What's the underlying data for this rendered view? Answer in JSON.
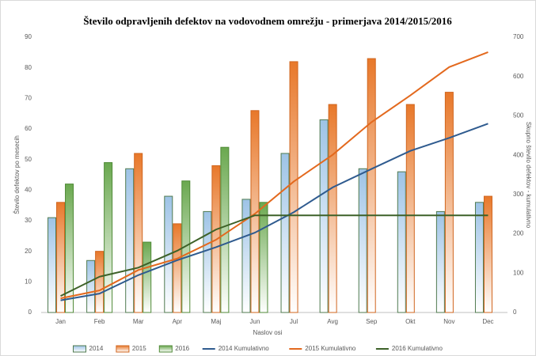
{
  "chart_data": {
    "type": "bar",
    "title": "Število odpravljenih defektov na vodovodnem omrežju - primerjava 2014/2015/2016",
    "x_label": "Naslov osi",
    "y_label": "Število defektov po mesecih",
    "y2_label": "Skupno število defektov - kumulativno",
    "categories": [
      "Jan",
      "Feb",
      "Mar",
      "Apr",
      "Maj",
      "Jun",
      "Jul",
      "Avg",
      "Sep",
      "Okt",
      "Nov",
      "Dec"
    ],
    "ylim": [
      0,
      90
    ],
    "yticks": [
      0,
      10,
      20,
      30,
      40,
      50,
      60,
      70,
      80,
      90
    ],
    "y2lim": [
      0,
      700
    ],
    "y2ticks": [
      0,
      100,
      200,
      300,
      400,
      500,
      600,
      700
    ],
    "grid": false,
    "legend": "bottom",
    "series": [
      {
        "name": "2014",
        "type": "bar",
        "color": "#9dc3e6",
        "edgecolor": "#4f7a4f",
        "values": [
          31,
          17,
          47,
          38,
          33,
          37,
          52,
          63,
          47,
          46,
          33,
          36
        ]
      },
      {
        "name": "2015",
        "type": "bar",
        "color": "#e8782a",
        "edgecolor": "#d0651e",
        "values": [
          36,
          20,
          52,
          29,
          48,
          66,
          82,
          68,
          83,
          68,
          72,
          38
        ]
      },
      {
        "name": "2016",
        "type": "bar",
        "color": "#6aa84f",
        "edgecolor": "#4f8a37",
        "values": [
          42,
          49,
          23,
          43,
          54,
          36,
          null,
          null,
          null,
          null,
          null,
          null
        ]
      },
      {
        "name": "2014 Kumulativno",
        "type": "line",
        "axis": "y2",
        "color": "#2f5b8f",
        "values": [
          31,
          48,
          95,
          133,
          166,
          203,
          255,
          318,
          365,
          411,
          444,
          480
        ]
      },
      {
        "name": "2015 Kumulativno",
        "type": "line",
        "axis": "y2",
        "color": "#e3691e",
        "values": [
          36,
          56,
          108,
          137,
          185,
          251,
          333,
          401,
          484,
          552,
          624,
          662
        ]
      },
      {
        "name": "2016 Kumulativno",
        "type": "line",
        "axis": "y2",
        "color": "#3d6128",
        "values": [
          42,
          91,
          114,
          157,
          211,
          247,
          247,
          247,
          247,
          247,
          247,
          247
        ]
      }
    ]
  }
}
